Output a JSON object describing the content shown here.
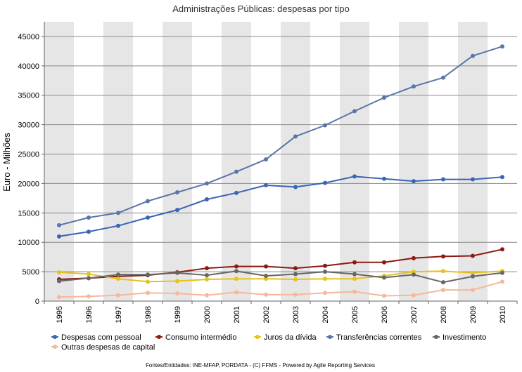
{
  "chart_data": {
    "type": "line",
    "title": "Administrações Públicas: despesas por tipo",
    "xlabel": "",
    "ylabel": "Euro - Milhões",
    "ylim": [
      0,
      47500
    ],
    "yticks": [
      0,
      5000,
      10000,
      15000,
      20000,
      25000,
      30000,
      35000,
      40000,
      45000
    ],
    "x": [
      "1995",
      "1996",
      "1997",
      "1998",
      "1999",
      "2000",
      "2001",
      "2002",
      "2003",
      "2004",
      "2005",
      "2006",
      "2007",
      "2008",
      "2009",
      "2010"
    ],
    "legend_position": "bottom",
    "grid": true,
    "series": [
      {
        "name": "Despesas com pessoal",
        "color": "#3a64b4",
        "values": [
          11000,
          11800,
          12800,
          14200,
          15500,
          17300,
          18400,
          19700,
          19400,
          20100,
          21200,
          20800,
          20400,
          20700,
          20700,
          21100
        ]
      },
      {
        "name": "Consumo intermédio",
        "color": "#8b1a10",
        "values": [
          3700,
          3900,
          4200,
          4400,
          4900,
          5600,
          5900,
          5900,
          5600,
          6000,
          6600,
          6600,
          7300,
          7600,
          7700,
          8800
        ]
      },
      {
        "name": "Juros da dívida",
        "color": "#e6c31a",
        "values": [
          4900,
          4600,
          3800,
          3300,
          3400,
          3700,
          3800,
          3800,
          3700,
          3800,
          3800,
          4300,
          5000,
          5100,
          4800,
          5100
        ]
      },
      {
        "name": "Transferências correntes",
        "color": "#5a75aa",
        "values": [
          12900,
          14200,
          15000,
          17000,
          18500,
          20000,
          22000,
          24100,
          28000,
          29900,
          32300,
          34600,
          36500,
          38000,
          41700,
          43300
        ]
      },
      {
        "name": "Investimento",
        "color": "#666666",
        "values": [
          3400,
          3900,
          4500,
          4500,
          4800,
          4400,
          5100,
          4300,
          4600,
          5000,
          4600,
          4000,
          4500,
          3200,
          4200,
          4800
        ]
      },
      {
        "name": "Outras despesas de capital",
        "color": "#f5b99a",
        "values": [
          700,
          800,
          1000,
          1400,
          1300,
          1000,
          1500,
          1100,
          1100,
          1400,
          1600,
          900,
          1000,
          1900,
          1900,
          3300
        ]
      }
    ]
  },
  "footer": {
    "source": "Fontes/Entidades: INE-MFAP, PORDATA - (C) FFMS - Powered by Agile Reporting Services"
  }
}
